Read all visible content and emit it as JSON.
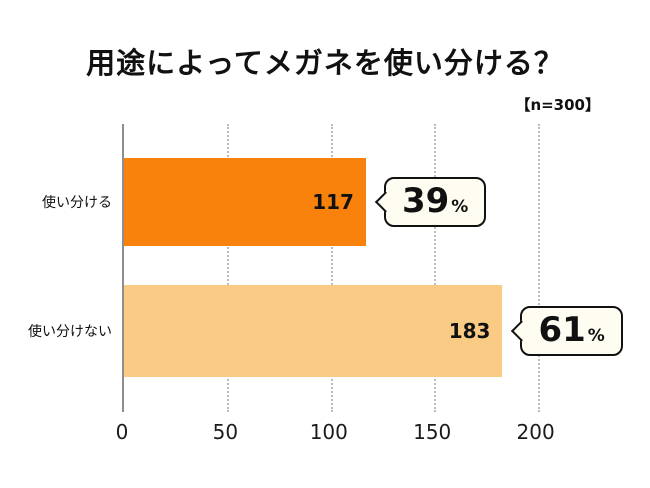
{
  "chart_data": {
    "type": "bar",
    "orientation": "horizontal",
    "title": "用途によってメガネを使い分ける？",
    "note": "【n=300】",
    "categories": [
      "使い分ける",
      "使い分けない"
    ],
    "values": [
      117,
      183
    ],
    "percent_values": [
      "39",
      "61"
    ],
    "percent_symbol": "%",
    "xticks": [
      0,
      50,
      100,
      150,
      200
    ],
    "xlim": [
      0,
      235
    ],
    "bar_colors": [
      "#F8820B",
      "#FACB85"
    ],
    "grid": "vertical-dotted",
    "legend": "none",
    "axis_color": "#8E8E8E",
    "grid_color": "#BDBDBD",
    "callout_bg": "#FFFDF2"
  }
}
